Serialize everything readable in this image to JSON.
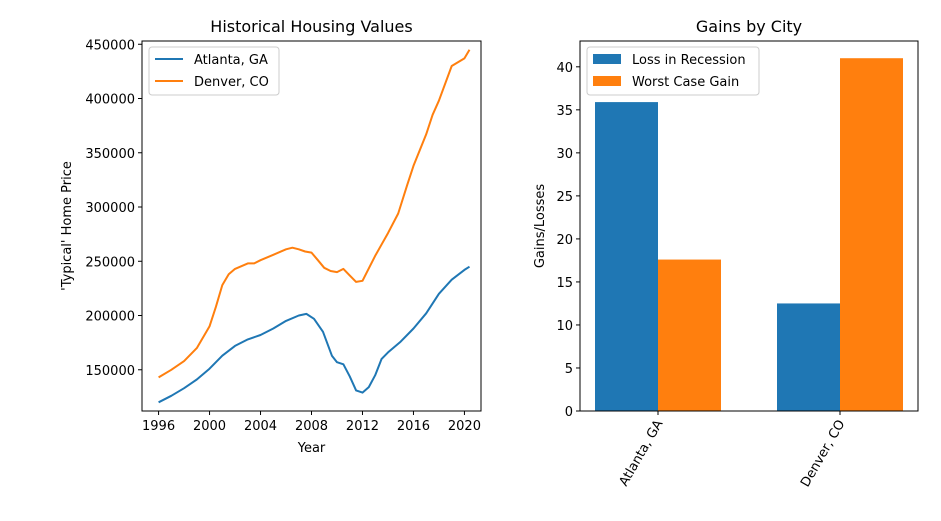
{
  "colors": {
    "blue": "#1f77b4",
    "orange": "#ff7f0e"
  },
  "chart_data": [
    {
      "type": "line",
      "title": "Historical Housing Values",
      "xlabel": "Year",
      "ylabel": "'Typical' Home Price",
      "xlim": [
        1994.7,
        2021.3
      ],
      "ylim": [
        112000,
        453000
      ],
      "xticks": [
        1996,
        2000,
        2004,
        2008,
        2012,
        2016,
        2020
      ],
      "xtick_labels": [
        "1996",
        "2000",
        "2004",
        "2008",
        "2012",
        "2016",
        "2020"
      ],
      "yticks": [
        150000,
        200000,
        250000,
        300000,
        350000,
        400000,
        450000
      ],
      "ytick_labels": [
        "150000",
        "200000",
        "250000",
        "300000",
        "350000",
        "400000",
        "450000"
      ],
      "legend": "top-left",
      "grid": false,
      "series": [
        {
          "name": "Atlanta, GA",
          "color": "#1f77b4",
          "x": [
            1996.0,
            1997.0,
            1998.0,
            1999.0,
            2000.0,
            2001.0,
            2002.0,
            2003.0,
            2004.0,
            2005.0,
            2006.0,
            2007.0,
            2007.6,
            2008.2,
            2008.9,
            2009.6,
            2010.0,
            2010.5,
            2011.0,
            2011.5,
            2012.0,
            2012.5,
            2013.0,
            2013.5,
            2014.0,
            2015.0,
            2016.0,
            2017.0,
            2018.0,
            2019.0,
            2020.0,
            2020.4
          ],
          "y": [
            120000,
            126000,
            133000,
            141000,
            151000,
            163000,
            172000,
            178000,
            182000,
            188000,
            195000,
            200000,
            201500,
            197000,
            185000,
            163000,
            157000,
            155000,
            144000,
            131000,
            129000,
            134000,
            145000,
            160000,
            166000,
            176000,
            188000,
            202000,
            220000,
            233000,
            242000,
            245000
          ]
        },
        {
          "name": "Denver, CO",
          "color": "#ff7f0e",
          "x": [
            1996.0,
            1997.0,
            1998.0,
            1999.0,
            2000.0,
            2000.5,
            2001.0,
            2001.5,
            2002.0,
            2003.0,
            2003.5,
            2004.0,
            2005.0,
            2006.0,
            2006.5,
            2007.0,
            2007.5,
            2008.0,
            2008.5,
            2009.0,
            2009.5,
            2010.0,
            2010.5,
            2011.0,
            2011.5,
            2012.0,
            2013.0,
            2014.0,
            2014.8,
            2015.5,
            2016.0,
            2017.0,
            2017.5,
            2018.0,
            2019.0,
            2020.0,
            2020.4
          ],
          "y": [
            143000,
            150000,
            158000,
            170000,
            190000,
            208000,
            228000,
            238000,
            243000,
            248000,
            248000,
            251000,
            256000,
            261000,
            262500,
            261000,
            259000,
            258000,
            251000,
            244000,
            241000,
            240000,
            243000,
            237000,
            231000,
            232000,
            255000,
            276000,
            294000,
            320000,
            338000,
            367000,
            385000,
            398000,
            430000,
            437000,
            445000
          ]
        }
      ]
    },
    {
      "type": "bar",
      "title": "Gains by City",
      "xlabel": "",
      "ylabel": "Gains/Losses",
      "categories": [
        "Atlanta, GA",
        "Denver, CO"
      ],
      "ylim": [
        0,
        43
      ],
      "yticks": [
        0,
        5,
        10,
        15,
        20,
        25,
        30,
        35,
        40
      ],
      "ytick_labels": [
        "0",
        "5",
        "10",
        "15",
        "20",
        "25",
        "30",
        "35",
        "40"
      ],
      "legend": "top-left",
      "grid": false,
      "series": [
        {
          "name": "Loss in Recession",
          "color": "#1f77b4",
          "values": [
            35.9,
            12.5
          ]
        },
        {
          "name": "Worst Case Gain",
          "color": "#ff7f0e",
          "values": [
            17.6,
            41.0
          ]
        }
      ]
    }
  ]
}
